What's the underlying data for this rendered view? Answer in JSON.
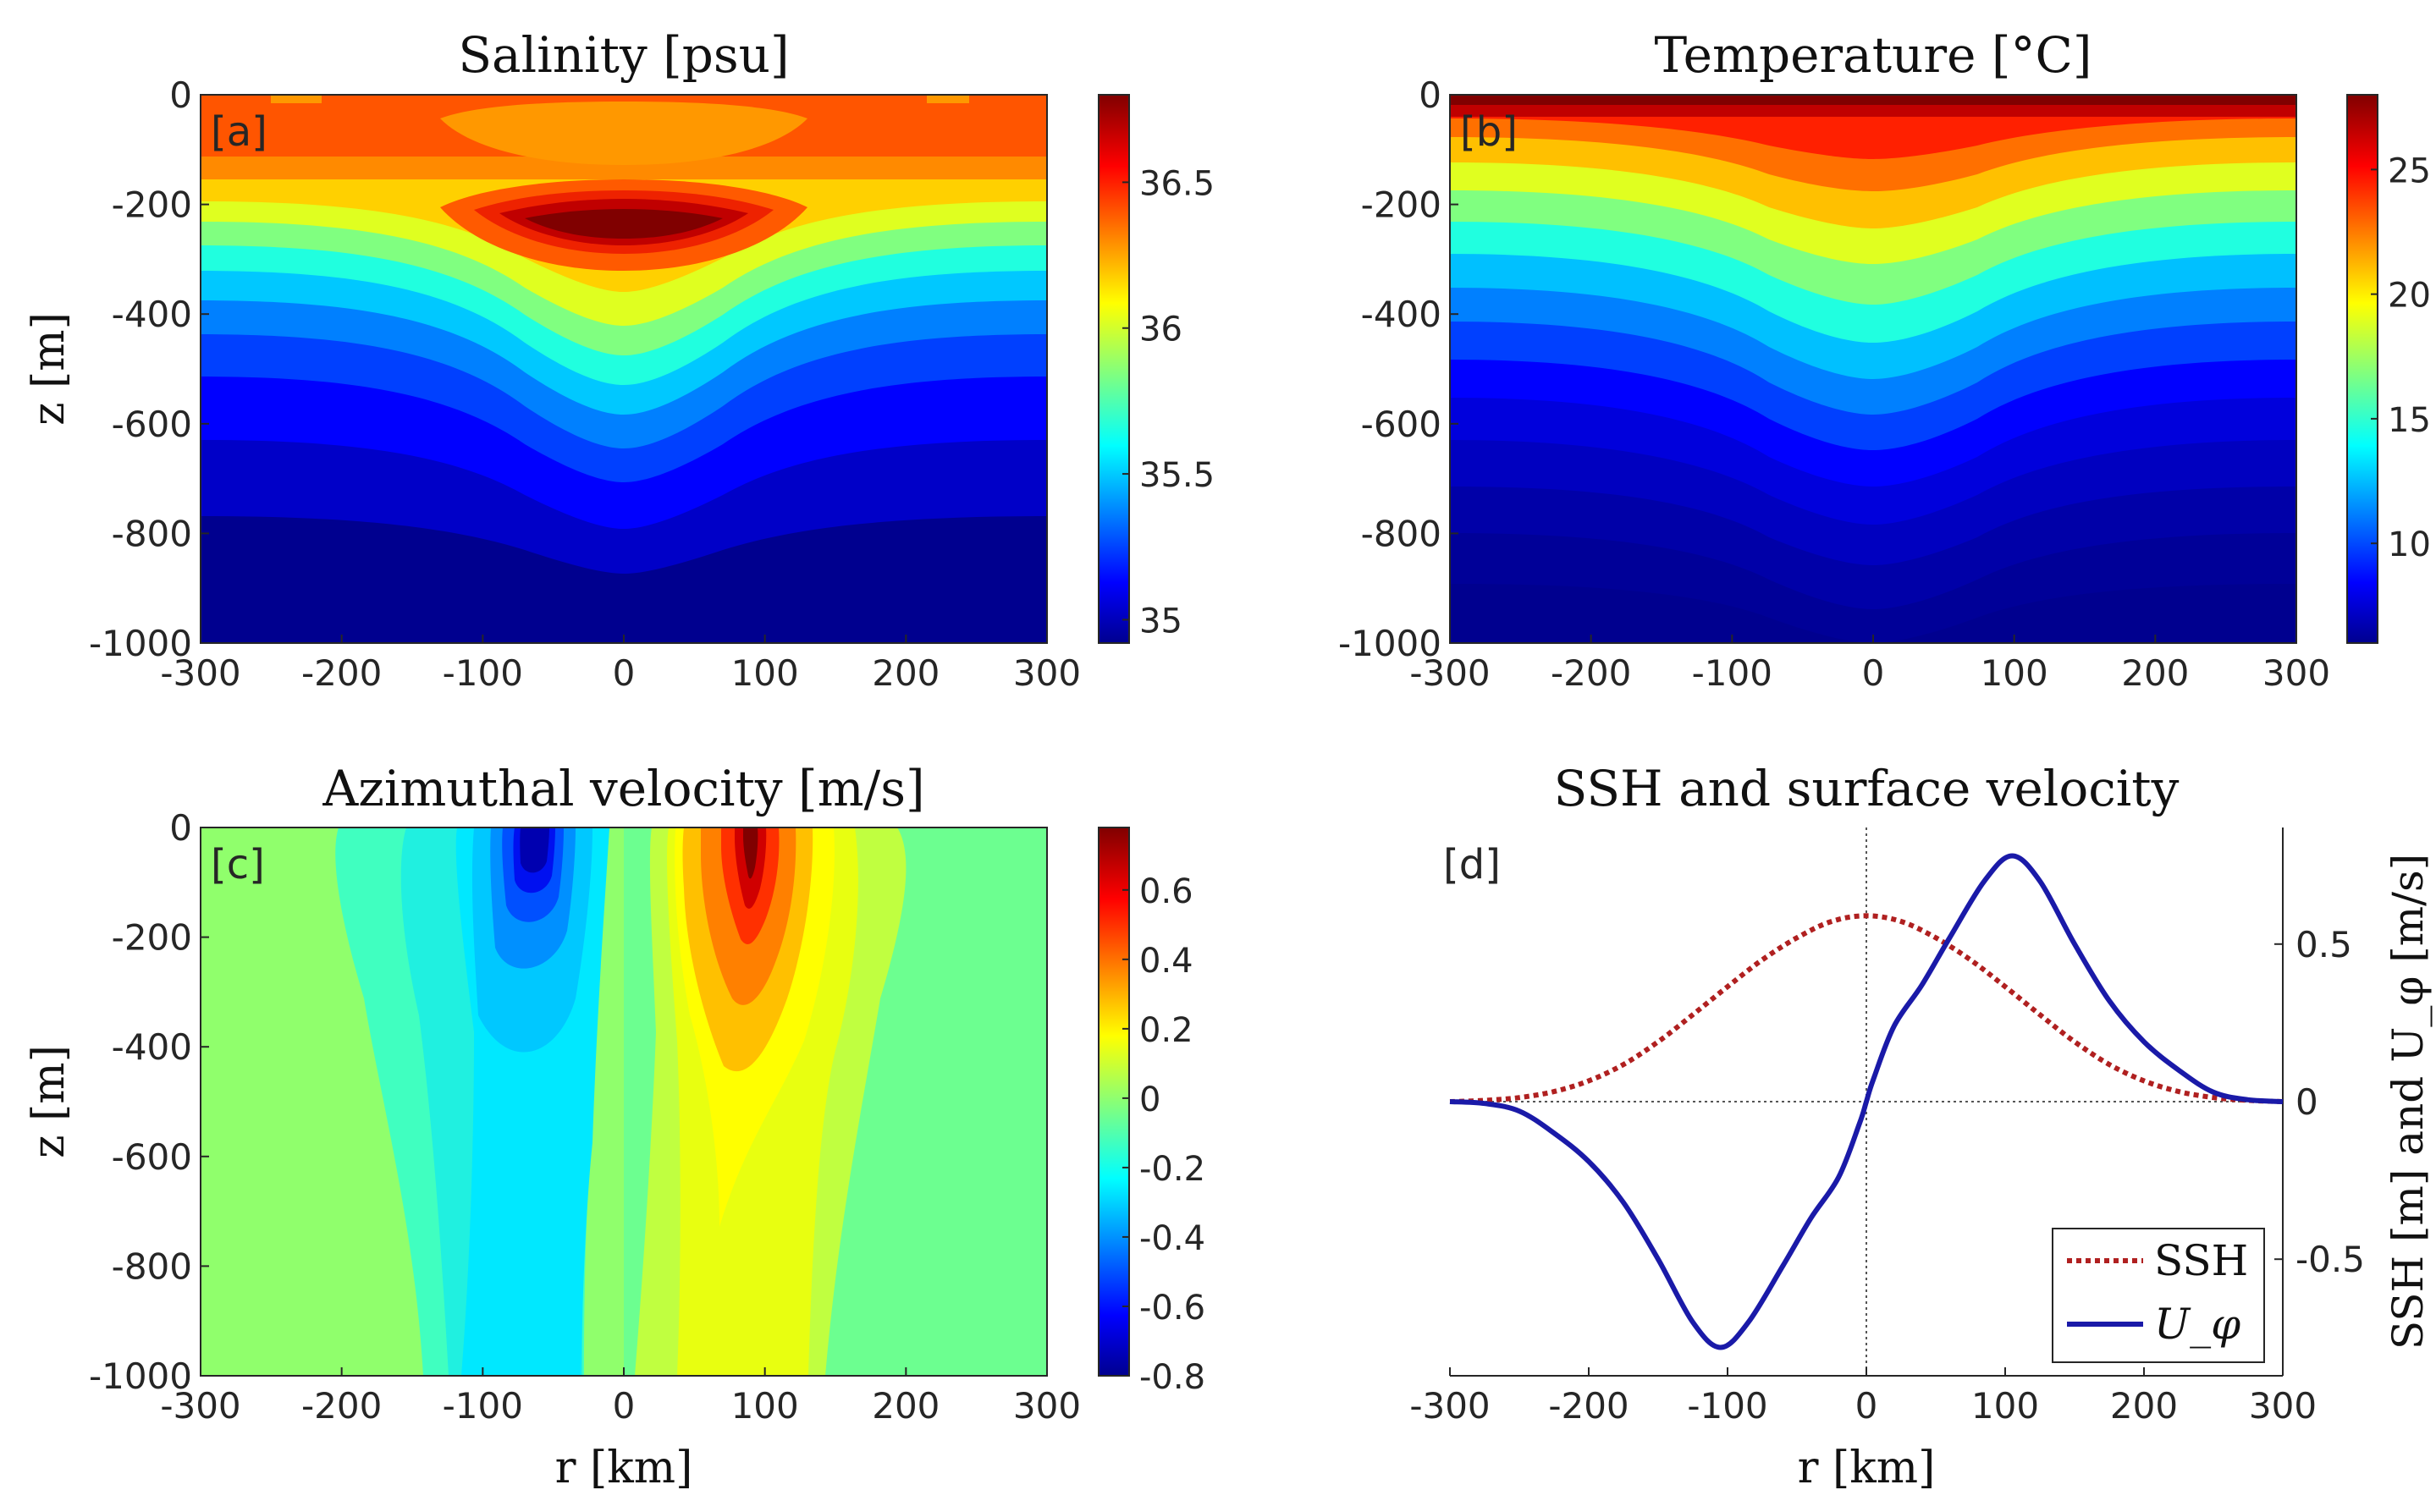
{
  "chart_data": [
    {
      "type": "contour",
      "panel_label": "[a]",
      "title": "Salinity [psu]",
      "ylabel": "z [m]",
      "xlabel": "",
      "xlim": [
        -300,
        300
      ],
      "ylim": [
        -1000,
        0
      ],
      "xticks": [
        -300,
        -200,
        -100,
        0,
        100,
        200,
        300
      ],
      "xtick_labels": [
        "-300",
        "-200",
        "-100",
        "0",
        "100",
        "200",
        "300"
      ],
      "yticks": [
        0,
        -200,
        -400,
        -600,
        -800,
        -1000
      ],
      "ytick_labels": [
        "0",
        "-200",
        "-400",
        "-600",
        "-800",
        "-1000"
      ],
      "colorbar": {
        "min": 34.92,
        "max": 36.8,
        "ticks": [
          35,
          35.5,
          36,
          36.5
        ],
        "tick_labels": [
          "35",
          "35.5",
          "36",
          "36.5"
        ]
      }
    },
    {
      "type": "contour",
      "panel_label": "[b]",
      "title": "Temperature [°C]",
      "ylabel": "",
      "xlabel": "",
      "xlim": [
        -300,
        300
      ],
      "ylim": [
        -1000,
        0
      ],
      "xticks": [
        -300,
        -200,
        -100,
        0,
        100,
        200,
        300
      ],
      "xtick_labels": [
        "-300",
        "-200",
        "-100",
        "0",
        "100",
        "200",
        "300"
      ],
      "yticks": [
        0,
        -200,
        -400,
        -600,
        -800,
        -1000
      ],
      "ytick_labels": [
        "0",
        "-200",
        "-400",
        "-600",
        "-800",
        "-1000"
      ],
      "colorbar": {
        "min": 6,
        "max": 28,
        "ticks": [
          10,
          15,
          20,
          25
        ],
        "tick_labels": [
          "10",
          "15",
          "20",
          "25"
        ]
      }
    },
    {
      "type": "contour",
      "panel_label": "[c]",
      "title": "Azimuthal velocity [m/s]",
      "ylabel": "z [m]",
      "xlabel": "r [km]",
      "xlim": [
        -300,
        300
      ],
      "ylim": [
        -1000,
        0
      ],
      "xticks": [
        -300,
        -200,
        -100,
        0,
        100,
        200,
        300
      ],
      "xtick_labels": [
        "-300",
        "-200",
        "-100",
        "0",
        "100",
        "200",
        "300"
      ],
      "yticks": [
        0,
        -200,
        -400,
        -600,
        -800,
        -1000
      ],
      "ytick_labels": [
        "0",
        "-200",
        "-400",
        "-600",
        "-800",
        "-1000"
      ],
      "colorbar": {
        "min": -0.8,
        "max": 0.78,
        "ticks": [
          -0.8,
          -0.6,
          -0.4,
          -0.2,
          0,
          0.2,
          0.4,
          0.6
        ],
        "tick_labels": [
          "-0.8",
          "-0.6",
          "-0.4",
          "-0.2",
          "0",
          "0.2",
          "0.4",
          "0.6"
        ]
      }
    },
    {
      "type": "line",
      "panel_label": "[d]",
      "title": "SSH and surface velocity",
      "xlabel": "r [km]",
      "ylabel_right": "SSH [m] and U_φ [m/s]",
      "xlim": [
        -300,
        300
      ],
      "ylim": [
        -0.87,
        0.87
      ],
      "xticks": [
        -300,
        -200,
        -100,
        0,
        100,
        200,
        300
      ],
      "xtick_labels": [
        "-300",
        "-200",
        "-100",
        "0",
        "100",
        "200",
        "300"
      ],
      "yticks": [
        0.5,
        0,
        -0.5
      ],
      "ytick_labels": [
        "0.5",
        "0",
        "-0.5"
      ],
      "legend_position": "bottom-right",
      "series": [
        {
          "name": "SSH",
          "style": "dotted",
          "color": "#b02020",
          "x": [
            -300,
            -275,
            -250,
            -225,
            -200,
            -175,
            -150,
            -125,
            -100,
            -75,
            -50,
            -25,
            0,
            25,
            50,
            75,
            100,
            125,
            150,
            175,
            200,
            225,
            250,
            275,
            300
          ],
          "y": [
            0.0,
            0.004,
            0.013,
            0.032,
            0.066,
            0.118,
            0.19,
            0.276,
            0.365,
            0.45,
            0.52,
            0.572,
            0.59,
            0.572,
            0.52,
            0.45,
            0.365,
            0.276,
            0.19,
            0.118,
            0.066,
            0.032,
            0.013,
            0.004,
            0.0
          ]
        },
        {
          "name": "U_φ",
          "style": "solid",
          "color": "#1a1aa8",
          "x": [
            -300,
            -275,
            -250,
            -225,
            -200,
            -175,
            -150,
            -125,
            -105,
            -85,
            -60,
            -40,
            -20,
            -5,
            0,
            5,
            20,
            40,
            60,
            85,
            105,
            125,
            150,
            175,
            200,
            225,
            250,
            275,
            300
          ],
          "y": [
            0.0,
            -0.006,
            -0.03,
            -0.1,
            -0.19,
            -0.32,
            -0.5,
            -0.7,
            -0.78,
            -0.7,
            -0.52,
            -0.37,
            -0.24,
            -0.07,
            0.0,
            0.07,
            0.24,
            0.37,
            0.52,
            0.7,
            0.78,
            0.7,
            0.5,
            0.32,
            0.19,
            0.1,
            0.03,
            0.006,
            0.0
          ]
        }
      ]
    }
  ]
}
